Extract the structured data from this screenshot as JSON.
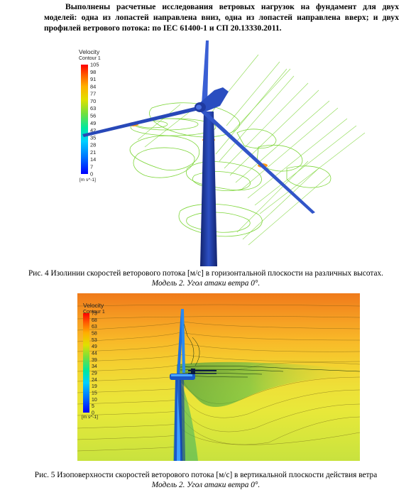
{
  "paragraph": "Выполнены расчетные исследования ветровых нагрузок на фундамент для двух моделей: одна из лопастей направлена вниз, одна из лопастей направлена вверх; и двух профилей ветрового потока: по IEC 61400-1 и СП 20.13330.2011.",
  "figure1": {
    "legend_title": "Velocity",
    "legend_subtitle": "Contour 1",
    "legend_units": "[m s^-1]",
    "legend_ticks": [
      "105",
      "98",
      "91",
      "84",
      "77",
      "70",
      "63",
      "56",
      "49",
      "42",
      "35",
      "28",
      "21",
      "14",
      "7",
      "0"
    ],
    "colors": {
      "contour": "#7ed63a",
      "turbine": "#2440a8"
    },
    "caption_main": "Рис. 4 Изолинии скоростей веторового потока [м/с] в горизонтальной плоскости на различных высотах. ",
    "caption_italic": "Модель 2. Угол атаки ветра 0°."
  },
  "figure2": {
    "legend_title": "Velocity",
    "legend_subtitle": "Contour 1",
    "legend_units": "[m s^-1]",
    "legend_ticks": [
      "73",
      "68",
      "63",
      "58",
      "53",
      "49",
      "44",
      "39",
      "34",
      "29",
      "24",
      "19",
      "15",
      "10",
      "5",
      "0"
    ],
    "caption_main": "Рис. 5 Изоповерхности скоростей веторового потока [м/с] в вертикальной плоскости действия ветра ",
    "caption_italic": "Модель 2. Угол атаки ветра 0°."
  }
}
